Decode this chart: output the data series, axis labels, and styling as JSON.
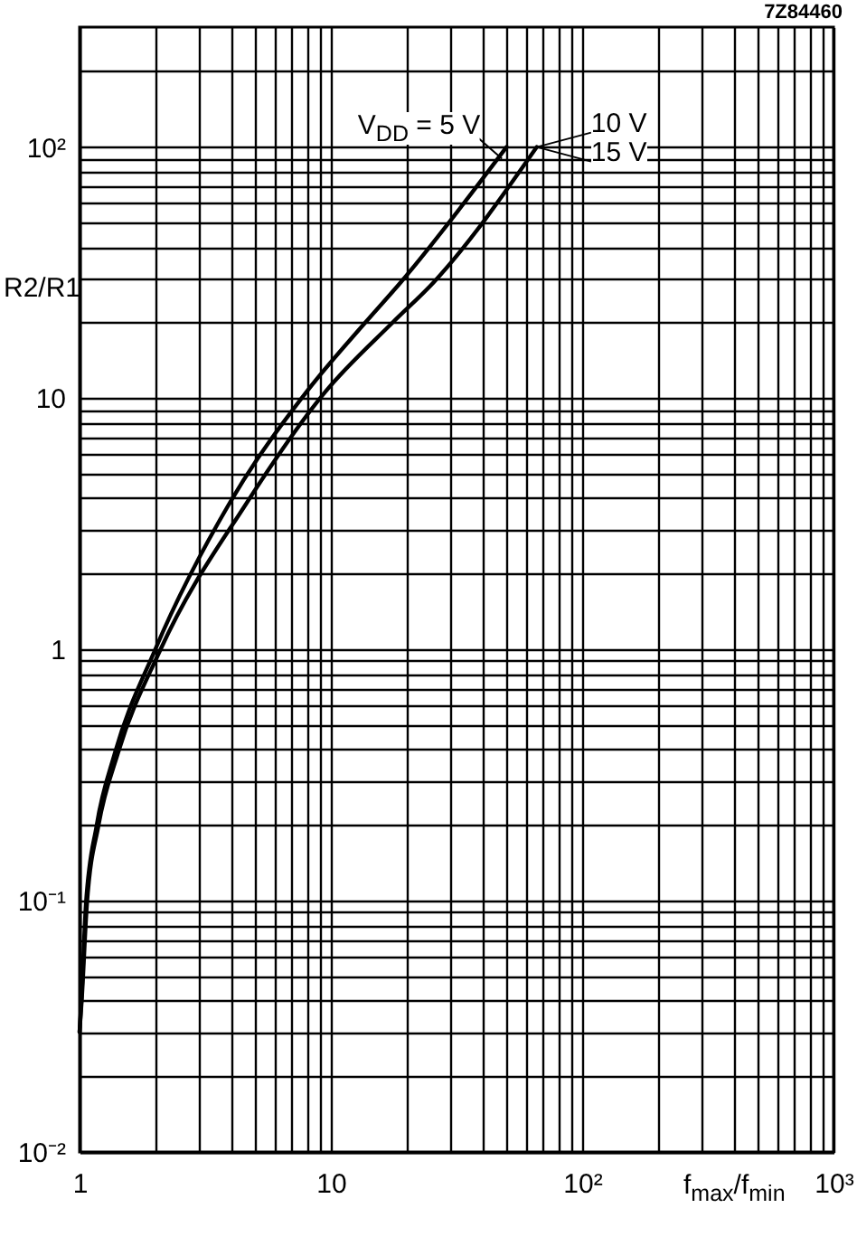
{
  "chart_data": {
    "type": "line",
    "log": "xy",
    "grid": true,
    "line_style": "solid",
    "xlabel": "f$_{max}$/f$_{min}$",
    "ylabel": "R2/R1",
    "xlim": [
      1,
      1000
    ],
    "ylim": [
      0.01,
      300
    ],
    "xticks": [
      1,
      {
        "value": 2,
        "label": null
      },
      {
        "value": 3,
        "label": null
      },
      {
        "value": 4,
        "label": null
      },
      {
        "value": 5,
        "label": null
      },
      {
        "value": 6,
        "label": null
      },
      {
        "value": 7,
        "label": null
      },
      {
        "value": 8,
        "label": null
      },
      {
        "value": 9,
        "label": null
      },
      10,
      {
        "value": 20,
        "label": null
      },
      {
        "value": 30,
        "label": null
      },
      {
        "value": 40,
        "label": null
      },
      {
        "value": 50,
        "label": null
      },
      {
        "value": 60,
        "label": null
      },
      {
        "value": 70,
        "label": null
      },
      {
        "value": 80,
        "label": null
      },
      {
        "value": 90,
        "label": null
      },
      {
        "value": 100,
        "label": "10²"
      },
      {
        "value": 200,
        "label": null
      },
      {
        "value": 300,
        "label": null
      },
      {
        "value": 400,
        "label": null
      },
      {
        "value": 500,
        "label": null
      },
      {
        "value": 600,
        "label": null
      },
      {
        "value": 700,
        "label": null
      },
      {
        "value": 800,
        "label": null
      },
      {
        "value": 900,
        "label": null
      },
      {
        "value": 1000,
        "label": "10³"
      }
    ],
    "yticks": [
      {
        "value": 0.01,
        "label": "10⁻²"
      },
      {
        "value": 0.02,
        "label": null
      },
      {
        "value": 0.03,
        "label": null
      },
      {
        "value": 0.04,
        "label": null
      },
      {
        "value": 0.05,
        "label": null
      },
      {
        "value": 0.06,
        "label": null
      },
      {
        "value": 0.07,
        "label": null
      },
      {
        "value": 0.08,
        "label": null
      },
      {
        "value": 0.09,
        "label": null
      },
      {
        "value": 0.1,
        "label": "10⁻¹"
      },
      {
        "value": 0.2,
        "label": null
      },
      {
        "value": 0.3,
        "label": null
      },
      {
        "value": 0.4,
        "label": null
      },
      {
        "value": 0.5,
        "label": null
      },
      {
        "value": 0.6,
        "label": null
      },
      {
        "value": 0.7,
        "label": null
      },
      {
        "value": 0.8,
        "label": null
      },
      {
        "value": 0.9,
        "label": null
      },
      1,
      {
        "value": 2,
        "label": null
      },
      {
        "value": 3,
        "label": null
      },
      {
        "value": 4,
        "label": null
      },
      {
        "value": 5,
        "label": null
      },
      {
        "value": 6,
        "label": null
      },
      {
        "value": 7,
        "label": null
      },
      {
        "value": 8,
        "label": null
      },
      {
        "value": 9,
        "label": null
      },
      10,
      {
        "value": 20,
        "label": null
      },
      {
        "value": 30,
        "label": null
      },
      {
        "value": 40,
        "label": null
      },
      {
        "value": 50,
        "label": null
      },
      {
        "value": 60,
        "label": null
      },
      {
        "value": 70,
        "label": null
      },
      {
        "value": 80,
        "label": null
      },
      {
        "value": 90,
        "label": null
      },
      {
        "value": 100,
        "label": "10²"
      },
      {
        "value": 200,
        "label": null
      }
    ],
    "series": [
      {
        "color": "#000000",
        "x": [
          1,
          1.017,
          1.06,
          1.17,
          1.38,
          2.0,
          4.0,
          8.0,
          13.7,
          19,
          50
        ],
        "values": [
          0.03,
          0.04,
          0.097,
          0.2,
          0.385,
          1.0,
          3.9,
          10.6,
          20,
          29,
          100
        ]
      },
      {
        "color": "#000000",
        "x": [
          1,
          1.02,
          1.07,
          1.19,
          1.42,
          2.1,
          4.6,
          9.5,
          17.6,
          25.7,
          66
        ],
        "values": [
          0.03,
          0.04,
          0.097,
          0.2,
          0.385,
          1.0,
          3.8,
          10.6,
          20,
          29,
          100
        ]
      }
    ],
    "annotations": [
      "7Z84460",
      "V$_{DD}$ = 5 V",
      "10 V",
      "15 V"
    ]
  }
}
